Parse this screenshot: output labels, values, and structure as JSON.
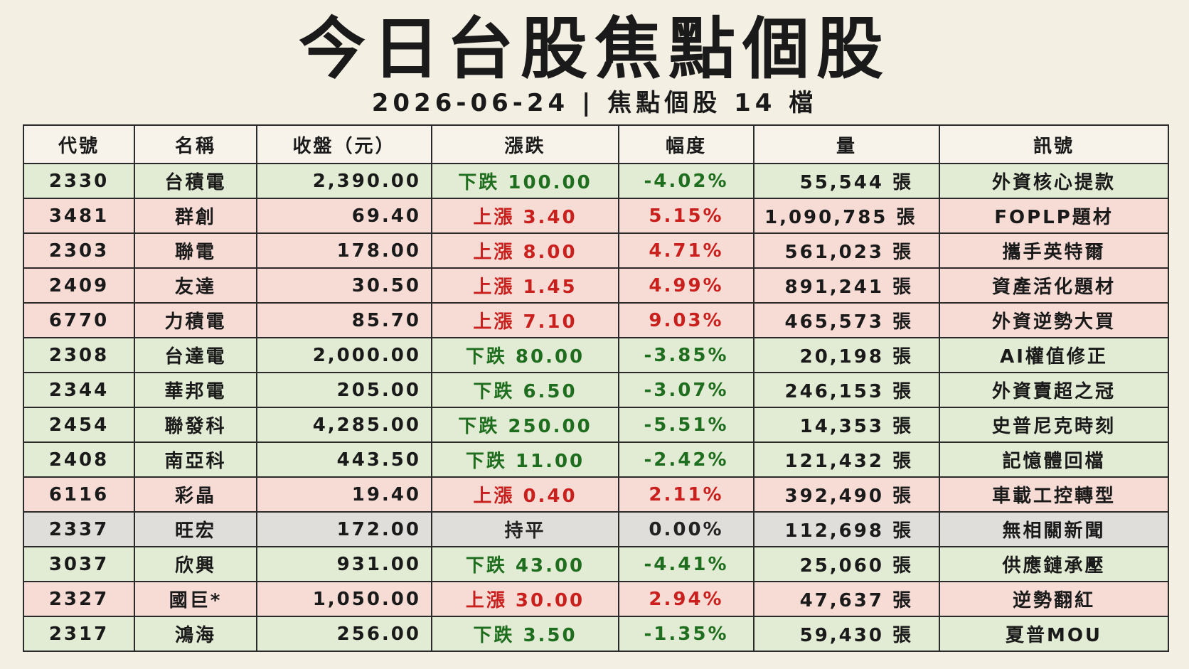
{
  "header": {
    "title": "今日台股焦點個股",
    "subtitle": "2026-06-24 | 焦點個股 14 檔"
  },
  "table": {
    "columns": [
      "代號",
      "名稱",
      "收盤（元）",
      "漲跌",
      "幅度",
      "量",
      "訊號"
    ],
    "rows": [
      [
        "2330",
        "台積電",
        "2,390.00",
        "下跌 100.00",
        "-4.02%",
        "55,544 張",
        "外資核心提款"
      ],
      [
        "3481",
        "群創",
        "69.40",
        "上漲 3.40",
        "5.15%",
        "1,090,785 張",
        "FOPLP題材"
      ],
      [
        "2303",
        "聯電",
        "178.00",
        "上漲 8.00",
        "4.71%",
        "561,023 張",
        "攜手英特爾"
      ],
      [
        "2409",
        "友達",
        "30.50",
        "上漲 1.45",
        "4.99%",
        "891,241 張",
        "資產活化題材"
      ],
      [
        "6770",
        "力積電",
        "85.70",
        "上漲 7.10",
        "9.03%",
        "465,573 張",
        "外資逆勢大買"
      ],
      [
        "2308",
        "台達電",
        "2,000.00",
        "下跌 80.00",
        "-3.85%",
        "20,198 張",
        "AI權值修正"
      ],
      [
        "2344",
        "華邦電",
        "205.00",
        "下跌 6.50",
        "-3.07%",
        "246,153 張",
        "外資賣超之冠"
      ],
      [
        "2454",
        "聯發科",
        "4,285.00",
        "下跌 250.00",
        "-5.51%",
        "14,353 張",
        "史普尼克時刻"
      ],
      [
        "2408",
        "南亞科",
        "443.50",
        "下跌 11.00",
        "-2.42%",
        "121,432 張",
        "記憶體回檔"
      ],
      [
        "6116",
        "彩晶",
        "19.40",
        "上漲 0.40",
        "2.11%",
        "392,490 張",
        "車載工控轉型"
      ],
      [
        "2337",
        "旺宏",
        "172.00",
        "持平",
        "0.00%",
        "112,698 張",
        "無相關新聞"
      ],
      [
        "3037",
        "欣興",
        "931.00",
        "下跌 43.00",
        "-4.41%",
        "25,060 張",
        "供應鏈承壓"
      ],
      [
        "2327",
        "國巨*",
        "1,050.00",
        "上漲 30.00",
        "2.94%",
        "47,637 張",
        "逆勢翻紅"
      ],
      [
        "2317",
        "鴻海",
        "256.00",
        "下跌 3.50",
        "-1.35%",
        "59,430 張",
        "夏普MOU"
      ]
    ],
    "row_backgrounds": [
      "#e2ebd3",
      "#f6dcd5",
      "#f6dcd5",
      "#f6dcd5",
      "#f6dcd5",
      "#e2ebd3",
      "#e2ebd3",
      "#e2ebd3",
      "#e2ebd3",
      "#f6dcd5",
      "#e0dedb",
      "#e2ebd3",
      "#f6dcd5",
      "#e2ebd3"
    ],
    "change_colors": [
      "#1f6e1f",
      "#c91f1d",
      "#c91f1d",
      "#c91f1d",
      "#c91f1d",
      "#1f6e1f",
      "#1f6e1f",
      "#1f6e1f",
      "#1f6e1f",
      "#c91f1d",
      "#222222",
      "#1f6e1f",
      "#c91f1d",
      "#1f6e1f"
    ]
  }
}
